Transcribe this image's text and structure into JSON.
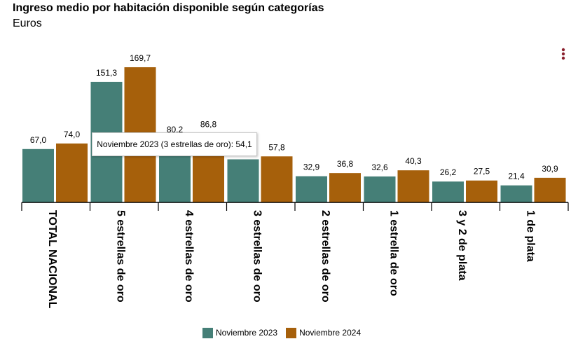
{
  "header": {
    "title": "Ingreso medio por habitación disponible según categorías",
    "subtitle": "Euros"
  },
  "tooltip": {
    "text": "Noviembre 2023 (3 estrellas de oro): 54,1"
  },
  "icons": {
    "menu": "vertical-dots-menu-icon"
  },
  "colors": {
    "series_2023": "#457f77",
    "series_2024": "#a6600b",
    "menu_dots": "#8a1f2d"
  },
  "chart_data": {
    "type": "bar",
    "categories": [
      "TOTAL NACIONAL",
      "5 estrellas de oro",
      "4 estrellas de oro",
      "3 estrellas de oro",
      "2 estrellas de oro",
      "1 estrella de oro",
      "3 y 2 de plata",
      "1 de plata"
    ],
    "series": [
      {
        "name": "Noviembre 2023",
        "color": "#457f77",
        "values": [
          67.0,
          151.3,
          80.2,
          54.1,
          32.9,
          32.6,
          26.2,
          21.4
        ],
        "labels": [
          "67,0",
          "151,3",
          "80,2",
          "",
          "32,9",
          "32,6",
          "26,2",
          "21,4"
        ]
      },
      {
        "name": "Noviembre 2024",
        "color": "#a6600b",
        "values": [
          74.0,
          169.7,
          86.8,
          57.8,
          36.8,
          40.3,
          27.5,
          30.9
        ],
        "labels": [
          "74,0",
          "169,7",
          "86,8",
          "57,8",
          "36,8",
          "40,3",
          "27,5",
          "30,9"
        ]
      }
    ],
    "xlabel": "",
    "ylabel": "",
    "ylim": [
      0,
      169.7
    ],
    "grid": false,
    "legend_position": "bottom-center",
    "value_labels": true
  }
}
